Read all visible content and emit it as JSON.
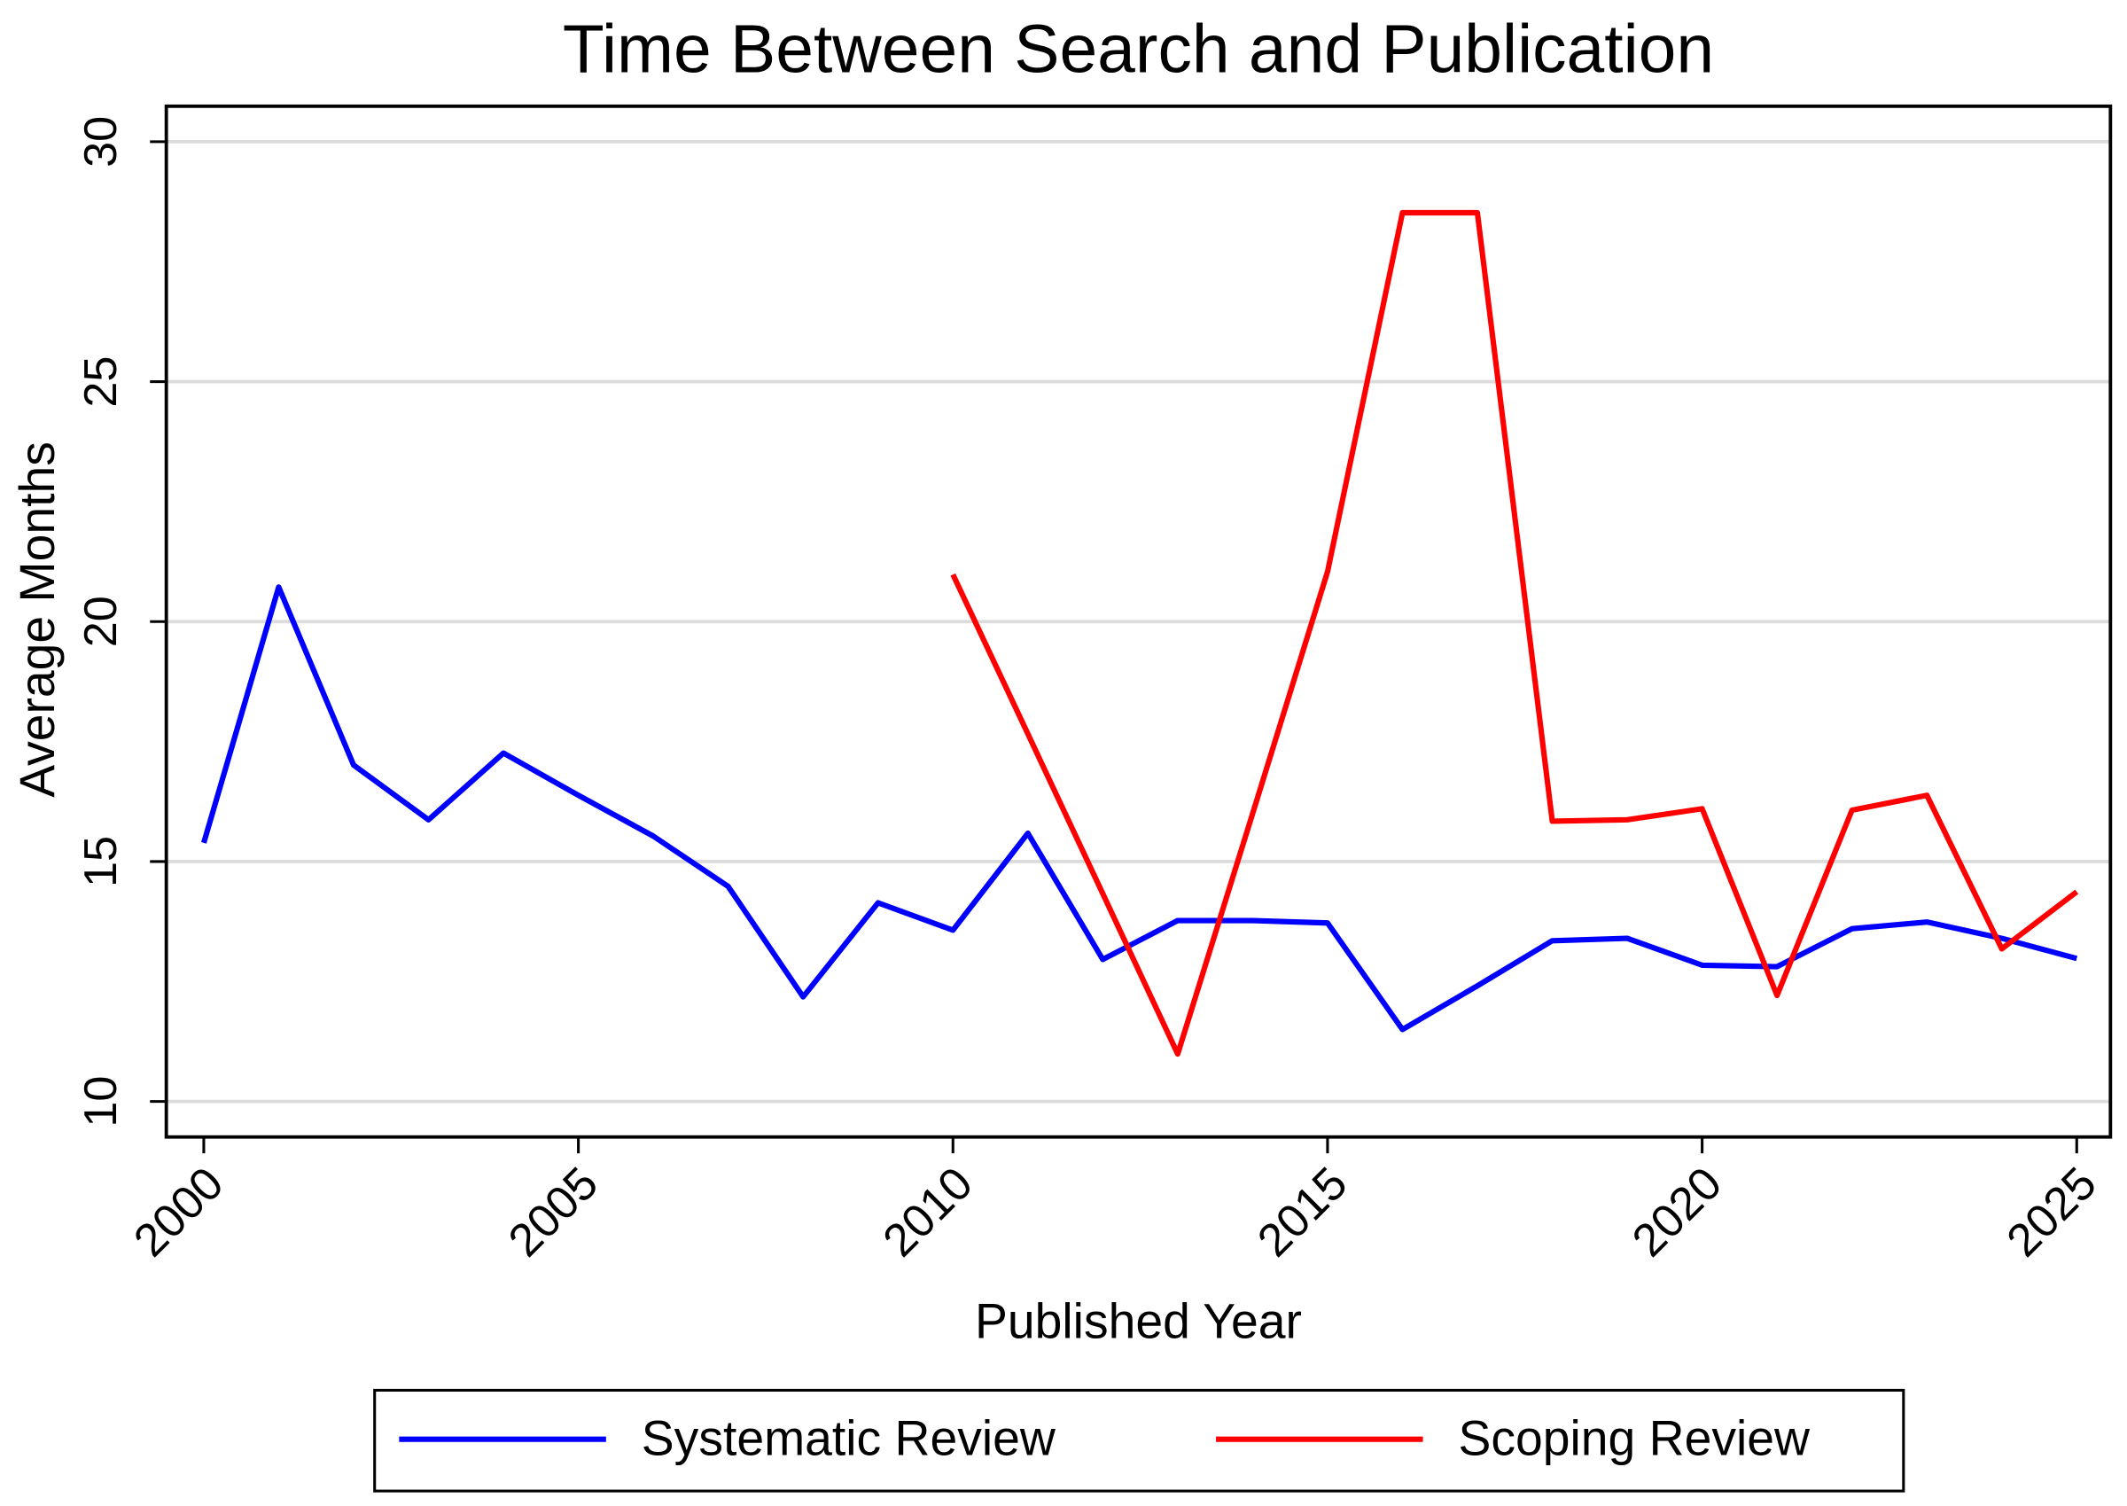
{
  "chart_data": {
    "type": "line",
    "title": "Time Between Search and Publication",
    "x_label": "Published Year",
    "y_label": "Average Months",
    "x": [
      2000,
      2001,
      2002,
      2003,
      2004,
      2005,
      2006,
      2007,
      2008,
      2009,
      2010,
      2011,
      2012,
      2013,
      2014,
      2015,
      2016,
      2017,
      2018,
      2019,
      2020,
      2021,
      2022,
      2023,
      2024,
      2025
    ],
    "series": [
      {
        "name": "Systematic Review",
        "color": "#0000ff",
        "values": [
          15.39,
          20.72,
          17.01,
          15.87,
          17.26,
          16.38,
          15.53,
          14.48,
          12.18,
          14.14,
          13.57,
          15.59,
          12.96,
          13.77,
          13.77,
          13.72,
          11.5,
          12.41,
          13.35,
          13.4,
          12.84,
          12.81,
          13.6,
          13.74,
          13.4,
          12.98
        ]
      },
      {
        "name": "Scoping Review",
        "color": "#ff0000",
        "values": [
          null,
          null,
          null,
          null,
          null,
          null,
          null,
          null,
          null,
          null,
          20.98,
          17.66,
          14.33,
          10.99,
          16.0,
          21.04,
          28.52,
          28.52,
          15.84,
          15.87,
          16.1,
          12.21,
          16.07,
          16.38,
          13.18,
          14.37
        ]
      }
    ],
    "xlim": [
      1999.5,
      2025.45
    ],
    "ylim": [
      9.26,
      30.74
    ],
    "xticks": [
      2000,
      2005,
      2010,
      2015,
      2020,
      2025
    ],
    "yticks": [
      10,
      15,
      20,
      25,
      30
    ],
    "grid": true,
    "legend": "bottom"
  }
}
